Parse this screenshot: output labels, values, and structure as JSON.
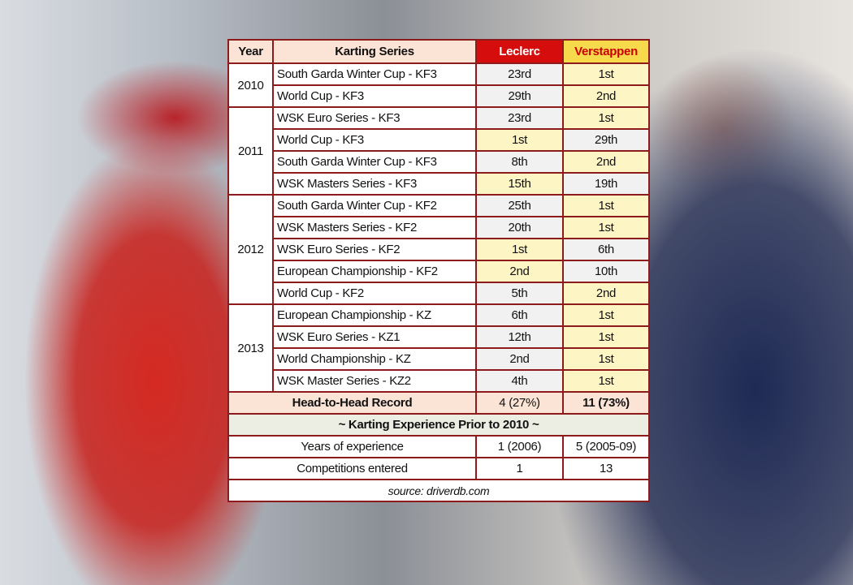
{
  "header": {
    "year": "Year",
    "series": "Karting Series",
    "leclerc": "Leclerc",
    "verstappen": "Verstappen"
  },
  "years": [
    {
      "year": "2010",
      "rows": [
        [
          "South Garda Winter Cup - KF3",
          "23rd",
          "1st"
        ],
        [
          "World Cup - KF3",
          "29th",
          "2nd"
        ]
      ]
    },
    {
      "year": "2011",
      "rows": [
        [
          "WSK Euro Series - KF3",
          "23rd",
          "1st"
        ],
        [
          "World Cup - KF3",
          "1st",
          "29th"
        ],
        [
          "South Garda Winter Cup - KF3",
          "8th",
          "2nd"
        ],
        [
          "WSK Masters Series - KF3",
          "15th",
          "19th"
        ]
      ]
    },
    {
      "year": "2012",
      "rows": [
        [
          "South Garda Winter Cup - KF2",
          "25th",
          "1st"
        ],
        [
          "WSK Masters Series - KF2",
          "20th",
          "1st"
        ],
        [
          "WSK Euro Series - KF2",
          "1st",
          "6th"
        ],
        [
          "European Championship - KF2",
          "2nd",
          "10th"
        ],
        [
          "World Cup - KF2",
          "5th",
          "2nd"
        ]
      ]
    },
    {
      "year": "2013",
      "rows": [
        [
          "European Championship - KZ",
          "6th",
          "1st"
        ],
        [
          "WSK Euro Series - KZ1",
          "12th",
          "1st"
        ],
        [
          "World Championship - KZ",
          "2nd",
          "1st"
        ],
        [
          "WSK Master Series - KZ2",
          "4th",
          "1st"
        ]
      ]
    }
  ],
  "head_to_head": {
    "label": "Head-to-Head Record",
    "leclerc": "4 (27%)",
    "verstappen": "11 (73%)"
  },
  "prior": {
    "title": "~ Karting Experience Prior to 2010 ~",
    "rows": [
      [
        "Years of experience",
        "1 (2006)",
        "5 (2005-09)"
      ],
      [
        "Competitions entered",
        "1",
        "13"
      ]
    ]
  },
  "source": "source: driverdb.com"
}
